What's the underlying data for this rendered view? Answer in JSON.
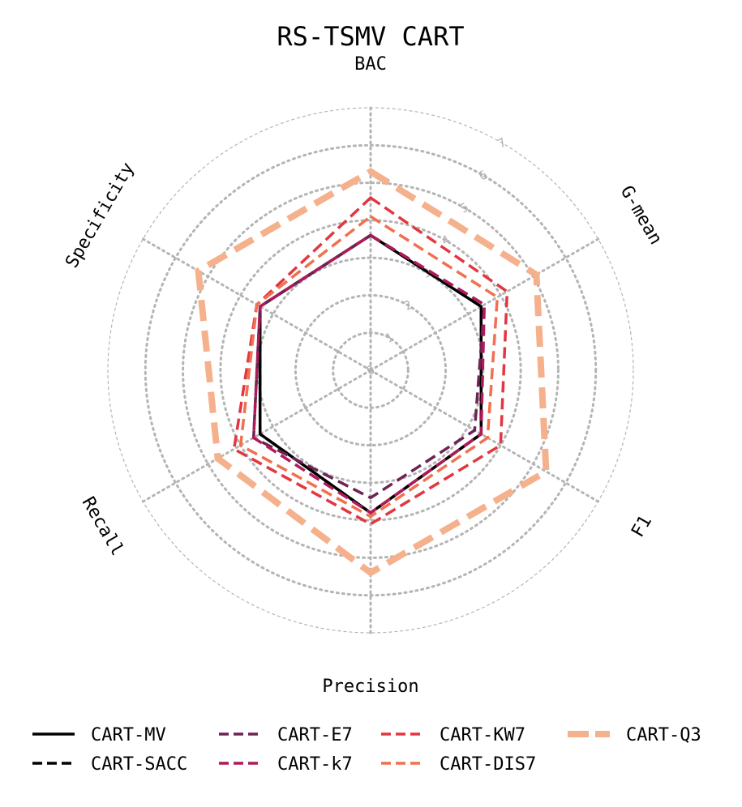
{
  "chart_data": {
    "type": "radar",
    "title": "RS-TSMV CART",
    "axes": [
      "BAC",
      "G-mean",
      "F1",
      "Precision",
      "Recall",
      "Specificity"
    ],
    "rlim": [
      0,
      7
    ],
    "rticks": [
      "0",
      "1",
      "2",
      "3",
      "4",
      "5",
      "6",
      "7"
    ],
    "grid": true,
    "legend_position": "bottom",
    "series": [
      {
        "name": "CART-MV",
        "color": "#000000",
        "style": "solid",
        "values": [
          3.6,
          3.4,
          3.4,
          3.8,
          3.4,
          3.4
        ]
      },
      {
        "name": "CART-SACC",
        "color": "#000000",
        "style": "dashed",
        "values": [
          3.6,
          3.4,
          3.4,
          3.8,
          3.4,
          3.4
        ]
      },
      {
        "name": "CART-E7",
        "color": "#6d2354",
        "style": "dashed",
        "values": [
          3.6,
          3.5,
          3.2,
          3.4,
          3.6,
          3.4
        ]
      },
      {
        "name": "CART-k7",
        "color": "#b01a59",
        "style": "dashed",
        "values": [
          3.6,
          3.5,
          3.4,
          3.8,
          3.6,
          3.4
        ]
      },
      {
        "name": "CART-KW7",
        "color": "#e23740",
        "style": "dashed",
        "values": [
          4.6,
          4.2,
          4.0,
          4.1,
          4.2,
          3.5
        ]
      },
      {
        "name": "CART-DIS7",
        "color": "#f07050",
        "style": "dashed",
        "values": [
          4.1,
          3.9,
          3.6,
          3.9,
          4.0,
          3.5
        ]
      },
      {
        "name": "CART-Q3",
        "color": "#f5b08c",
        "style": "thick-dashed",
        "values": [
          5.3,
          5.1,
          5.4,
          5.4,
          4.7,
          5.3
        ]
      }
    ]
  }
}
